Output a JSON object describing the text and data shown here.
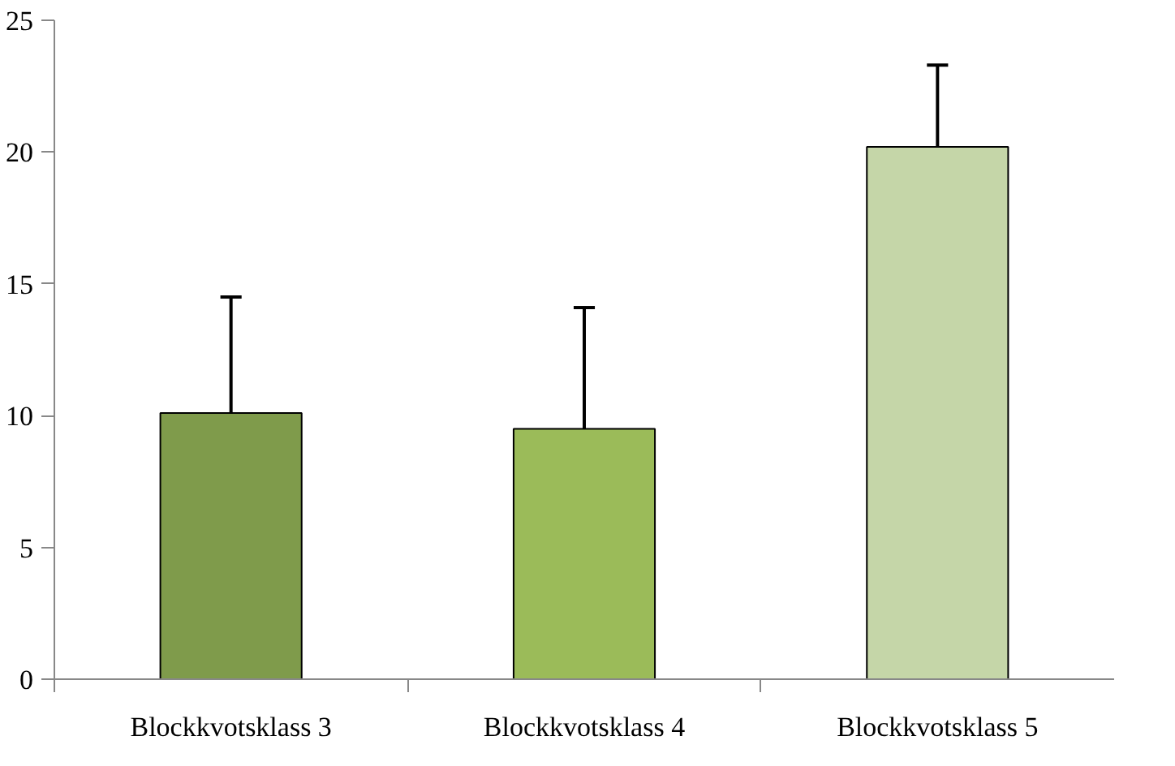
{
  "chart_data": {
    "type": "bar",
    "categories": [
      "Blockkvotsklass 3",
      "Blockkvotsklass 4",
      "Blockkvotsklass 5"
    ],
    "values": [
      10.1,
      9.5,
      20.2
    ],
    "colors": [
      "#7f9b4b",
      "#9bbb59",
      "#c5d6a8"
    ],
    "errors": [
      [
        10.1,
        14.5
      ],
      [
        9.5,
        14.1
      ],
      [
        20.2,
        23.3
      ]
    ],
    "ylim": [
      0,
      25
    ],
    "yticks": [
      0,
      5,
      10,
      15,
      20,
      25
    ],
    "grid": false
  }
}
